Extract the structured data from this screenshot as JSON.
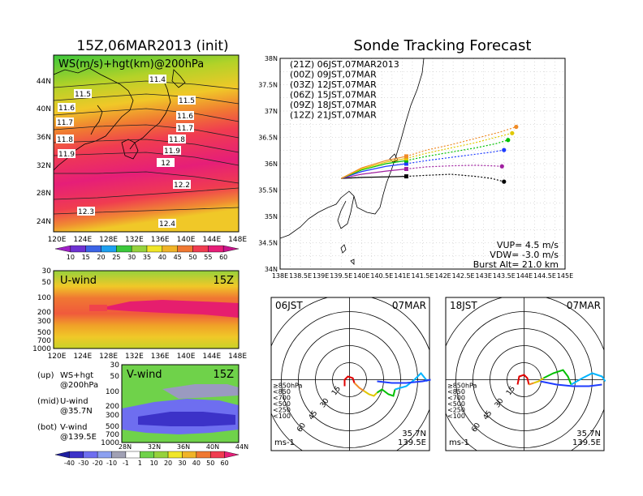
{
  "left": {
    "title": "15Z,06MAR2013 (init)",
    "top_map": {
      "label": "WS(m/s)+hgt(km)@200hPa",
      "lat_ticks": [
        "44N",
        "40N",
        "36N",
        "32N",
        "28N",
        "24N"
      ],
      "lon_ticks": [
        "120E",
        "124E",
        "128E",
        "132E",
        "136E",
        "140E",
        "144E",
        "148E"
      ],
      "contours": [
        "11.4",
        "11.5",
        "11.5",
        "11.6",
        "11.6",
        "11.7",
        "11.7",
        "11.8",
        "11.8",
        "11.9",
        "11.9",
        "12",
        "12.2",
        "12.3",
        "12.4"
      ],
      "colorbar": [
        "10",
        "15",
        "20",
        "25",
        "30",
        "35",
        "40",
        "45",
        "50",
        "55",
        "60"
      ]
    },
    "u_wind": {
      "label": "U-wind",
      "time": "15Z",
      "p_ticks": [
        "30",
        "50",
        "100",
        "200",
        "300",
        "500",
        "700",
        "1000"
      ],
      "lon_ticks": [
        "120E",
        "124E",
        "128E",
        "132E",
        "136E",
        "140E",
        "144E",
        "148E"
      ]
    },
    "v_wind": {
      "label": "V-wind",
      "time": "15Z",
      "p_ticks": [
        "30",
        "50",
        "100",
        "200",
        "300",
        "500",
        "700",
        "1000"
      ],
      "lat_ticks": [
        "28N",
        "32N",
        "36N",
        "40N",
        "44N"
      ],
      "colorbar": [
        "-40",
        "-30",
        "-20",
        "-10",
        "-1",
        "1",
        "10",
        "20",
        "30",
        "40",
        "50",
        "60"
      ]
    },
    "legend": [
      {
        "key": "(up)",
        "line1": "WS+hgt",
        "line2": "@200hPa"
      },
      {
        "key": "(mid)",
        "line1": "U-wind",
        "line2": "@35.7N"
      },
      {
        "key": "(bot)",
        "line1": "V-wind",
        "line2": "@139.5E"
      }
    ]
  },
  "chart_data": {
    "type": "line",
    "title": "Sonde Tracking Forecast",
    "xlim": [
      138,
      145
    ],
    "ylim": [
      34,
      38
    ],
    "x_ticks": [
      "138E",
      "138.5E",
      "139E",
      "139.5E",
      "140E",
      "140.5E",
      "141E",
      "141.5E",
      "142E",
      "142.5E",
      "143E",
      "143.5E",
      "144E",
      "144.5E",
      "145E"
    ],
    "y_ticks": [
      "34N",
      "34.5N",
      "35N",
      "35.5N",
      "36N",
      "36.5N",
      "37N",
      "37.5N",
      "38N"
    ],
    "launch": {
      "lon": 139.5,
      "lat": 35.72
    },
    "series": [
      {
        "name": "(21Z) 06JST,07MAR2013",
        "color": "#000000",
        "points": [
          [
            139.5,
            35.72
          ],
          [
            140.0,
            35.74
          ],
          [
            140.6,
            35.75
          ],
          [
            141.1,
            35.76
          ],
          [
            141.6,
            35.78
          ],
          [
            142.2,
            35.8
          ],
          [
            142.8,
            35.76
          ],
          [
            143.2,
            35.72
          ],
          [
            143.5,
            35.66
          ]
        ]
      },
      {
        "name": "(00Z) 09JST,07MAR",
        "color": "#a020a0",
        "points": [
          [
            139.5,
            35.72
          ],
          [
            140.0,
            35.8
          ],
          [
            140.6,
            35.86
          ],
          [
            141.1,
            35.9
          ],
          [
            141.6,
            35.94
          ],
          [
            142.2,
            35.96
          ],
          [
            142.8,
            35.97
          ],
          [
            143.2,
            35.96
          ],
          [
            143.45,
            35.95
          ]
        ]
      },
      {
        "name": "(03Z) 12JST,07MAR",
        "color": "#1e3cff",
        "points": [
          [
            139.5,
            35.72
          ],
          [
            140.0,
            35.85
          ],
          [
            140.6,
            35.95
          ],
          [
            141.1,
            36.0
          ],
          [
            141.6,
            36.06
          ],
          [
            142.2,
            36.12
          ],
          [
            142.8,
            36.18
          ],
          [
            143.2,
            36.22
          ],
          [
            143.5,
            36.26
          ]
        ]
      },
      {
        "name": "(06Z) 15JST,07MAR",
        "color": "#00c000",
        "points": [
          [
            139.5,
            35.72
          ],
          [
            140.0,
            35.88
          ],
          [
            140.6,
            36.0
          ],
          [
            141.1,
            36.06
          ],
          [
            141.6,
            36.14
          ],
          [
            142.2,
            36.22
          ],
          [
            142.8,
            36.3
          ],
          [
            143.3,
            36.38
          ],
          [
            143.6,
            36.45
          ]
        ]
      },
      {
        "name": "(09Z) 18JST,07MAR",
        "color": "#e0c800",
        "points": [
          [
            139.5,
            35.72
          ],
          [
            140.0,
            35.9
          ],
          [
            140.6,
            36.03
          ],
          [
            141.1,
            36.1
          ],
          [
            141.6,
            36.2
          ],
          [
            142.2,
            36.3
          ],
          [
            142.8,
            36.4
          ],
          [
            143.3,
            36.5
          ],
          [
            143.7,
            36.58
          ]
        ]
      },
      {
        "name": "(12Z) 21JST,07MAR",
        "color": "#f08c28",
        "points": [
          [
            139.5,
            35.72
          ],
          [
            140.0,
            35.92
          ],
          [
            140.6,
            36.06
          ],
          [
            141.1,
            36.14
          ],
          [
            141.6,
            36.26
          ],
          [
            142.2,
            36.36
          ],
          [
            142.8,
            36.48
          ],
          [
            143.4,
            36.6
          ],
          [
            143.8,
            36.7
          ]
        ]
      }
    ],
    "info": {
      "vup": "VUP= 4.5 m/s",
      "vdw": "VDW= -3.0 m/s",
      "burst": "Burst Alt= 21.0 km"
    }
  },
  "hodographs": [
    {
      "left_label": "06JST",
      "right_label": "07MAR",
      "ring_labels": [
        "15",
        "30",
        "45",
        "60"
      ],
      "levels": [
        "≥850hPa",
        "<850",
        "<700",
        "<500",
        "<250",
        "<100"
      ],
      "level_colors": [
        "#e00000",
        "#f08c28",
        "#e0c800",
        "#00c000",
        "#00b4ff",
        "#1e3cff"
      ],
      "unit": "ms-1",
      "lat": "35.7N",
      "lon": "139.5E"
    },
    {
      "left_label": "18JST",
      "right_label": "07MAR",
      "ring_labels": [
        "15",
        "30",
        "45",
        "60"
      ],
      "levels": [
        "≥850hPa",
        "<850",
        "<700",
        "<500",
        "<250",
        "<100"
      ],
      "level_colors": [
        "#e00000",
        "#f08c28",
        "#e0c800",
        "#00c000",
        "#00b4ff",
        "#1e3cff"
      ],
      "unit": "ms-1",
      "lat": "35.7N",
      "lon": "139.5E"
    }
  ]
}
